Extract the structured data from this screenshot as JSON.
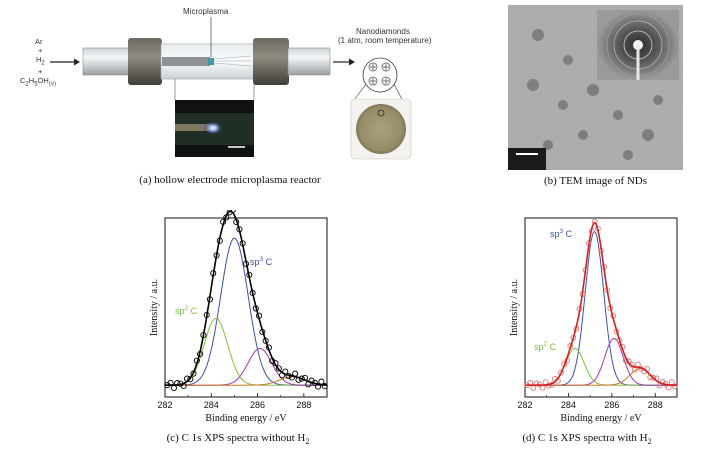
{
  "panel_a": {
    "caption": "(a) hollow electrode microplasma reactor",
    "gas_ar": "Ar",
    "plus1": "+",
    "gas_h2": "H",
    "gas_h2_sub": "2",
    "plus2": "+",
    "gas_eth": "C",
    "gas_eth_sub1": "2",
    "gas_eth_mid": "H",
    "gas_eth_sub2": "5",
    "gas_eth_end": "OH",
    "gas_eth_sub3": "(V)",
    "microplasma_label": "Microplasma",
    "nanodiamonds_label": "Nanodiamonds",
    "conditions_label": "(1 atm, room temperature)"
  },
  "panel_b": {
    "caption": "(b) TEM image of NDs"
  },
  "panel_c": {
    "caption_main": "(c) C 1s XPS spectra without H",
    "caption_sub": "2",
    "ylabel": "Intensity / a.u.",
    "xlabel": "Binding energy / eV",
    "sp3_label": "sp",
    "sp3_sup": "3",
    "sp3_c": " C",
    "sp2_label": "sp",
    "sp2_sup": "2",
    "sp2_c": " C",
    "colors": {
      "sp3": "#3a4fb0",
      "sp2": "#7fbf3f",
      "third": "#a03cb0",
      "fourth": "#c87820",
      "fit": "#000000",
      "data": "#000000"
    }
  },
  "panel_d": {
    "caption_main": "(d) C 1s XPS spectra with H",
    "caption_sub": "2",
    "ylabel": "Intensity / a.u.",
    "xlabel": "Binding energy / eV",
    "sp3_label": "sp",
    "sp3_sup": "3",
    "sp3_c": " C",
    "sp2_label": "sp",
    "sp2_sup": "2",
    "sp2_c": " C",
    "colors": {
      "sp3": "#3a4fb0",
      "sp2": "#7fbf3f",
      "third": "#a03cb0",
      "fourth": "#c87820",
      "fit": "#d02020",
      "data": "#e07070"
    }
  },
  "chart_data": [
    {
      "type": "line",
      "panel": "c",
      "xlabel": "Binding energy / eV",
      "ylabel": "Intensity / a.u.",
      "xlim": [
        282,
        289
      ],
      "xticks": [
        282,
        284,
        286,
        288
      ],
      "series": [
        {
          "name": "sp3 C",
          "peak_center": 285.0,
          "peak_height": 0.88,
          "fwhm": 1.4
        },
        {
          "name": "sp2 C",
          "peak_center": 284.2,
          "peak_height": 0.4,
          "fwhm": 1.2
        },
        {
          "peak_center": 286.1,
          "peak_height": 0.22,
          "fwhm": 1.2
        },
        {
          "peak_center": 287.5,
          "peak_height": 0.05,
          "fwhm": 1.3
        }
      ]
    },
    {
      "type": "line",
      "panel": "d",
      "xlabel": "Binding energy / eV",
      "ylabel": "Intensity / a.u.",
      "xlim": [
        282,
        289
      ],
      "xticks": [
        282,
        284,
        286,
        288
      ],
      "series": [
        {
          "name": "sp3 C",
          "peak_center": 285.2,
          "peak_height": 0.92,
          "fwhm": 1.0
        },
        {
          "name": "sp2 C",
          "peak_center": 284.3,
          "peak_height": 0.22,
          "fwhm": 1.0
        },
        {
          "peak_center": 286.1,
          "peak_height": 0.28,
          "fwhm": 1.0
        },
        {
          "peak_center": 287.3,
          "peak_height": 0.1,
          "fwhm": 1.1
        }
      ]
    }
  ]
}
